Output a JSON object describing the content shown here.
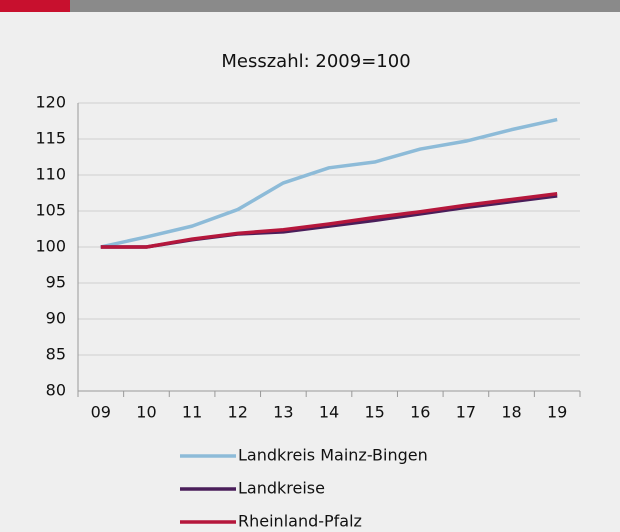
{
  "chart_data": {
    "type": "line",
    "title": "Messzahl: 2009=100",
    "categories": [
      "09",
      "10",
      "11",
      "12",
      "13",
      "14",
      "15",
      "16",
      "17",
      "18",
      "19"
    ],
    "series": [
      {
        "name": "Landkreis Mainz-Bingen",
        "color": "#8dbbd8",
        "values": [
          100,
          101.4,
          102.9,
          105.2,
          108.9,
          111.0,
          111.8,
          113.6,
          114.7,
          116.3,
          117.7
        ]
      },
      {
        "name": "Landkreise",
        "color": "#4a1e5a",
        "values": [
          100,
          100,
          101.0,
          101.8,
          102.1,
          102.9,
          103.7,
          104.6,
          105.5,
          106.3,
          107.1
        ]
      },
      {
        "name": "Rheinland-Pfalz",
        "color": "#b5173c",
        "values": [
          100,
          100,
          101.1,
          101.9,
          102.4,
          103.2,
          104.1,
          104.9,
          105.8,
          106.6,
          107.4
        ]
      }
    ],
    "ylim": [
      80,
      120
    ],
    "yticks": [
      80,
      85,
      90,
      95,
      100,
      105,
      110,
      115,
      120
    ],
    "grid": true
  }
}
